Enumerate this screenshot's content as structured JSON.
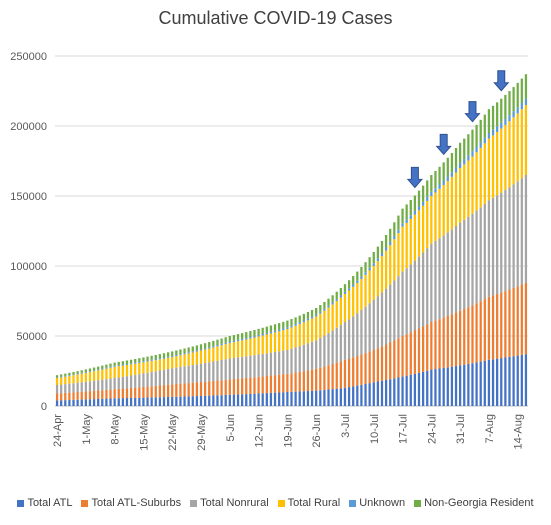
{
  "chart_data": {
    "type": "bar",
    "stacked": true,
    "title": "Cumulative COVID-19 Cases",
    "xlabel": "",
    "ylabel": "",
    "ylim": [
      0,
      250000
    ],
    "yticks": [
      0,
      50000,
      100000,
      150000,
      200000,
      250000
    ],
    "ytick_labels": [
      "0",
      "50000",
      "100000",
      "150000",
      "200000",
      "250000"
    ],
    "grid": true,
    "legend_position": "bottom",
    "x_start_date": "2020-04-24",
    "xtick_labels": [
      "24-Apr",
      "1-May",
      "8-May",
      "15-May",
      "22-May",
      "29-May",
      "5-Jun",
      "12-Jun",
      "19-Jun",
      "26-Jun",
      "3-Jul",
      "10-Jul",
      "17-Jul",
      "24-Jul",
      "31-Jul",
      "7-Aug",
      "14-Aug"
    ],
    "categories": [
      "24-Apr",
      "25-Apr",
      "26-Apr",
      "27-Apr",
      "28-Apr",
      "29-Apr",
      "30-Apr",
      "1-May",
      "2-May",
      "3-May",
      "4-May",
      "5-May",
      "6-May",
      "7-May",
      "8-May",
      "9-May",
      "10-May",
      "11-May",
      "12-May",
      "13-May",
      "14-May",
      "15-May",
      "16-May",
      "17-May",
      "18-May",
      "19-May",
      "20-May",
      "21-May",
      "22-May",
      "23-May",
      "24-May",
      "25-May",
      "26-May",
      "27-May",
      "28-May",
      "29-May",
      "30-May",
      "31-May",
      "1-Jun",
      "2-Jun",
      "3-Jun",
      "4-Jun",
      "5-Jun",
      "6-Jun",
      "7-Jun",
      "8-Jun",
      "9-Jun",
      "10-Jun",
      "11-Jun",
      "12-Jun",
      "13-Jun",
      "14-Jun",
      "15-Jun",
      "16-Jun",
      "17-Jun",
      "18-Jun",
      "19-Jun",
      "20-Jun",
      "21-Jun",
      "22-Jun",
      "23-Jun",
      "24-Jun",
      "25-Jun",
      "26-Jun",
      "27-Jun",
      "28-Jun",
      "29-Jun",
      "30-Jun",
      "1-Jul",
      "2-Jul",
      "3-Jul",
      "4-Jul",
      "5-Jul",
      "6-Jul",
      "7-Jul",
      "8-Jul",
      "9-Jul",
      "10-Jul",
      "11-Jul",
      "12-Jul",
      "13-Jul",
      "14-Jul",
      "15-Jul",
      "16-Jul",
      "17-Jul",
      "18-Jul",
      "19-Jul",
      "20-Jul",
      "21-Jul",
      "22-Jul",
      "23-Jul",
      "24-Jul",
      "25-Jul",
      "26-Jul",
      "27-Jul",
      "28-Jul",
      "29-Jul",
      "30-Jul",
      "31-Jul",
      "1-Aug",
      "2-Aug",
      "3-Aug",
      "4-Aug",
      "5-Aug",
      "6-Aug",
      "7-Aug",
      "8-Aug",
      "9-Aug",
      "10-Aug",
      "11-Aug",
      "12-Aug",
      "13-Aug",
      "14-Aug",
      "15-Aug",
      "16-Aug"
    ],
    "series": [
      {
        "name": "Total ATL",
        "color": "#4472C4",
        "key_dates": [
          [
            "2020-04-24",
            4000
          ],
          [
            "2020-05-08",
            5500
          ],
          [
            "2020-05-22",
            6500
          ],
          [
            "2020-06-05",
            8000
          ],
          [
            "2020-06-19",
            10000
          ],
          [
            "2020-06-26",
            11000
          ],
          [
            "2020-07-03",
            13000
          ],
          [
            "2020-07-10",
            17000
          ],
          [
            "2020-07-17",
            21000
          ],
          [
            "2020-07-24",
            26000
          ],
          [
            "2020-07-31",
            29000
          ],
          [
            "2020-08-07",
            33000
          ],
          [
            "2020-08-16",
            37000
          ]
        ]
      },
      {
        "name": "Total ATL-Suburbs",
        "color": "#ED7D31",
        "key_dates": [
          [
            "2020-04-24",
            9000
          ],
          [
            "2020-05-08",
            12000
          ],
          [
            "2020-05-22",
            15500
          ],
          [
            "2020-06-05",
            19000
          ],
          [
            "2020-06-19",
            23000
          ],
          [
            "2020-06-26",
            26500
          ],
          [
            "2020-07-03",
            33000
          ],
          [
            "2020-07-10",
            40000
          ],
          [
            "2020-07-17",
            50000
          ],
          [
            "2020-07-24",
            60000
          ],
          [
            "2020-07-31",
            68000
          ],
          [
            "2020-08-07",
            78000
          ],
          [
            "2020-08-16",
            88000
          ]
        ]
      },
      {
        "name": "Total Nonrural",
        "color": "#A5A5A5",
        "key_dates": [
          [
            "2020-04-24",
            15000
          ],
          [
            "2020-05-08",
            20000
          ],
          [
            "2020-05-22",
            27000
          ],
          [
            "2020-06-05",
            34000
          ],
          [
            "2020-06-19",
            40000
          ],
          [
            "2020-06-26",
            47000
          ],
          [
            "2020-07-03",
            60000
          ],
          [
            "2020-07-10",
            76000
          ],
          [
            "2020-07-17",
            96000
          ],
          [
            "2020-07-24",
            116000
          ],
          [
            "2020-07-31",
            131000
          ],
          [
            "2020-08-07",
            147000
          ],
          [
            "2020-08-16",
            165000
          ]
        ]
      },
      {
        "name": "Total Rural",
        "color": "#FFC000",
        "key_dates": [
          [
            "2020-04-24",
            20000
          ],
          [
            "2020-05-08",
            28000
          ],
          [
            "2020-05-22",
            35000
          ],
          [
            "2020-06-05",
            45000
          ],
          [
            "2020-06-19",
            55000
          ],
          [
            "2020-06-26",
            64000
          ],
          [
            "2020-07-03",
            80000
          ],
          [
            "2020-07-10",
            100000
          ],
          [
            "2020-07-17",
            128000
          ],
          [
            "2020-07-24",
            150000
          ],
          [
            "2020-07-31",
            170000
          ],
          [
            "2020-08-07",
            191000
          ],
          [
            "2020-08-16",
            215000
          ]
        ]
      },
      {
        "name": "Unknown",
        "color": "#5B9BD5",
        "key_dates": [
          [
            "2020-04-24",
            20500
          ],
          [
            "2020-05-08",
            28700
          ],
          [
            "2020-05-22",
            35800
          ],
          [
            "2020-06-05",
            46000
          ],
          [
            "2020-06-19",
            56200
          ],
          [
            "2020-06-26",
            65300
          ],
          [
            "2020-07-03",
            81500
          ],
          [
            "2020-07-10",
            102000
          ],
          [
            "2020-07-17",
            130500
          ],
          [
            "2020-07-24",
            153000
          ],
          [
            "2020-07-31",
            173500
          ],
          [
            "2020-08-07",
            195000
          ],
          [
            "2020-08-16",
            219500
          ]
        ]
      },
      {
        "name": "Non-Georgia Resident",
        "color": "#70AD47",
        "key_dates": [
          [
            "2020-04-24",
            22000
          ],
          [
            "2020-05-08",
            31000
          ],
          [
            "2020-05-22",
            39000
          ],
          [
            "2020-06-05",
            50000
          ],
          [
            "2020-06-19",
            61000
          ],
          [
            "2020-06-26",
            70000
          ],
          [
            "2020-07-03",
            87000
          ],
          [
            "2020-07-10",
            110000
          ],
          [
            "2020-07-17",
            141000
          ],
          [
            "2020-07-24",
            165000
          ],
          [
            "2020-07-31",
            188000
          ],
          [
            "2020-08-07",
            212000
          ],
          [
            "2020-08-16",
            237000
          ]
        ]
      }
    ],
    "annotations": [
      {
        "type": "arrow-down",
        "date": "2020-07-20",
        "color": "#4472C4"
      },
      {
        "type": "arrow-down",
        "date": "2020-07-27",
        "color": "#4472C4"
      },
      {
        "type": "arrow-down",
        "date": "2020-08-03",
        "color": "#4472C4"
      },
      {
        "type": "arrow-down",
        "date": "2020-08-10",
        "color": "#4472C4"
      }
    ]
  }
}
